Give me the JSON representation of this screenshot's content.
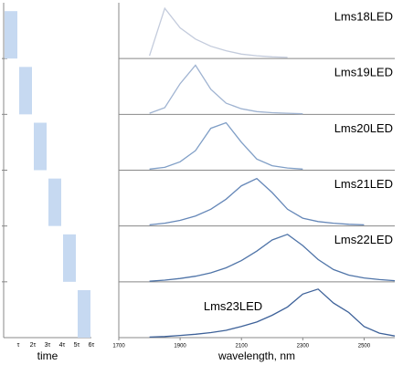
{
  "chart_data": [
    {
      "type": "bar",
      "x_label": "time",
      "categories": [
        "τ",
        "2τ",
        "3τ",
        "4τ",
        "5τ",
        "6τ"
      ],
      "values": [
        0.85,
        0.85,
        0.85,
        0.85,
        0.85,
        0.85
      ],
      "ylim": [
        0,
        1
      ],
      "color": "#c6d9f1"
    },
    {
      "type": "line",
      "x_label": "wavelength, nm",
      "x": [
        1700,
        1750,
        1800,
        1850,
        1900,
        1950,
        2000,
        2050,
        2100,
        2150,
        2200,
        2250,
        2300,
        2350,
        2400,
        2450,
        2500,
        2550,
        2600
      ],
      "xlim": [
        1700,
        2600
      ],
      "xticks": [
        1700,
        1900,
        2100,
        2300,
        2500
      ],
      "ylim": [
        0,
        1
      ],
      "series": [
        {
          "name": "Lms18LED",
          "color": "#c3cbdc",
          "values": [
            null,
            null,
            0.05,
            0.9,
            0.55,
            0.35,
            0.22,
            0.14,
            0.08,
            0.05,
            0.03,
            0.02,
            null,
            null,
            null,
            null,
            null,
            null,
            null
          ]
        },
        {
          "name": "Lms19LED",
          "color": "#9fb3d1",
          "values": [
            null,
            null,
            0.02,
            0.12,
            0.55,
            0.88,
            0.45,
            0.2,
            0.1,
            0.05,
            0.03,
            0.02,
            0.01,
            null,
            null,
            null,
            null,
            null,
            null
          ]
        },
        {
          "name": "Lms20LED",
          "color": "#7f9ec6",
          "values": [
            null,
            null,
            0.02,
            0.05,
            0.15,
            0.35,
            0.75,
            0.85,
            0.5,
            0.2,
            0.08,
            0.04,
            0.02,
            null,
            null,
            null,
            null,
            null,
            null
          ]
        },
        {
          "name": "Lms21LED",
          "color": "#6587b8",
          "values": [
            null,
            null,
            0.02,
            0.05,
            0.1,
            0.18,
            0.3,
            0.48,
            0.72,
            0.85,
            0.6,
            0.3,
            0.14,
            0.08,
            0.05,
            0.03,
            0.02,
            null,
            null
          ]
        },
        {
          "name": "Lms22LED",
          "color": "#4f74a8",
          "values": [
            null,
            null,
            0.01,
            0.03,
            0.06,
            0.1,
            0.16,
            0.25,
            0.38,
            0.55,
            0.75,
            0.85,
            0.65,
            0.4,
            0.22,
            0.12,
            0.07,
            0.04,
            0.02
          ]
        },
        {
          "name": "Lms23LED",
          "color": "#3d6199",
          "values": [
            null,
            null,
            0.01,
            0.02,
            0.04,
            0.06,
            0.09,
            0.13,
            0.2,
            0.28,
            0.4,
            0.55,
            0.78,
            0.87,
            0.62,
            0.45,
            0.2,
            0.08,
            0.03
          ]
        }
      ]
    }
  ]
}
